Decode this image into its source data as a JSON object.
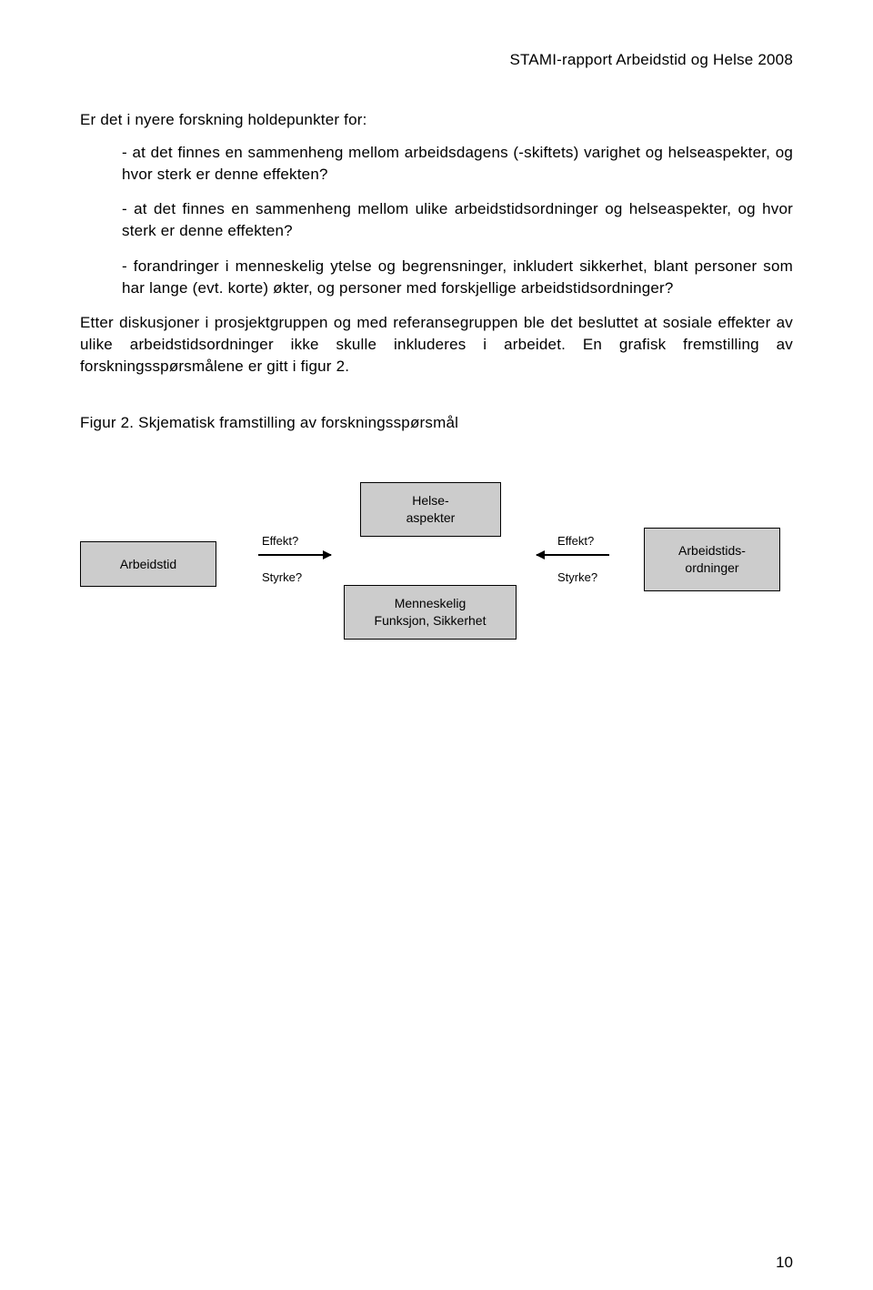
{
  "header": "STAMI-rapport Arbeidstid og Helse 2008",
  "intro": "Er det i nyere forskning holdepunkter for:",
  "bullets": {
    "p1": "- at det finnes en sammenheng mellom arbeidsdagens (-skiftets) varighet og helseaspekter, og hvor sterk er denne effekten?",
    "p2": "- at det finnes en sammenheng mellom ulike arbeidstidsordninger og helseaspekter, og hvor sterk er denne effekten?",
    "p3": "- forandringer i menneskelig ytelse og begrensninger, inkludert sikkerhet, blant personer som har lange (evt. korte) økter, og personer med forskjellige arbeidstidsordninger?"
  },
  "body": "Etter diskusjoner i prosjektgruppen og med referansegruppen ble det besluttet at sosiale effekter av ulike arbeidstidsordninger ikke skulle inkluderes i arbeidet. En grafisk fremstilling av forskningsspørsmålene er gitt i figur 2.",
  "figcaption": "Figur 2. Skjematisk framstilling av forskningsspørsmål",
  "diagram": {
    "left_box": "Arbeidstid",
    "right_box_line1": "Arbeidstids-",
    "right_box_line2": "ordninger",
    "top_box_line1": "Helse-",
    "top_box_line2": "aspekter",
    "bottom_box_line1": "Menneskelig",
    "bottom_box_line2": "Funksjon, Sikkerhet",
    "label_effekt": "Effekt?",
    "label_styrke": "Styrke?",
    "box_fill": "#cccccc",
    "box_border": "#000000",
    "background": "#ffffff"
  },
  "page_number": "10"
}
